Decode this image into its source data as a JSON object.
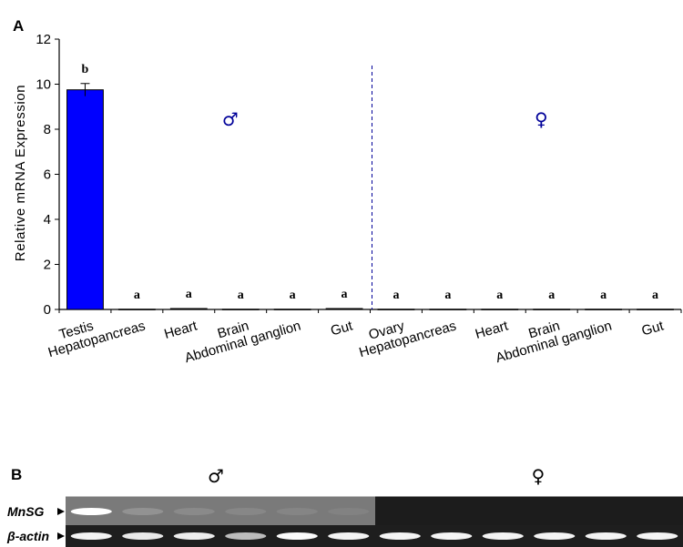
{
  "panel_a_label": "A",
  "panel_b_label": "B",
  "chart_data": {
    "type": "bar",
    "title": "",
    "xlabel": "",
    "ylabel": "Relative mRNA Expression",
    "ylim": [
      0,
      12
    ],
    "yticks": [
      0,
      2,
      4,
      6,
      8,
      10,
      12
    ],
    "grid": false,
    "categories": [
      "Testis",
      "Hepatopancreas",
      "Heart",
      "Brain",
      "Abdominal ganglion",
      "Gut",
      "Ovary",
      "Hepatopancreas",
      "Heart",
      "Brain",
      "Abdominal ganglion",
      "Gut"
    ],
    "values": [
      9.75,
      0.01,
      0.04,
      0.01,
      0.01,
      0.04,
      0.01,
      0.01,
      0.01,
      0.01,
      0.01,
      0.01
    ],
    "errors": [
      0.28,
      0,
      0,
      0,
      0,
      0,
      0,
      0,
      0,
      0,
      0,
      0
    ],
    "significance": [
      "b",
      "a",
      "a",
      "a",
      "a",
      "a",
      "a",
      "a",
      "a",
      "a",
      "a",
      "a"
    ],
    "bar_color": "#0000ff",
    "divider_color": "#000099",
    "groups": [
      {
        "symbol": "♂",
        "color": "#000099"
      },
      {
        "symbol": "♀",
        "color": "#000099"
      }
    ]
  },
  "gel": {
    "sex_labels": [
      "♂",
      "♀"
    ],
    "rows": [
      {
        "label": "MnSG",
        "intensities": [
          1.0,
          0.18,
          0.12,
          0.1,
          0.08,
          0.06,
          0.0,
          0.0,
          0.0,
          0.0,
          0.0,
          0.0
        ]
      },
      {
        "label": "β-actin",
        "intensities": [
          0.95,
          0.9,
          0.92,
          0.7,
          0.98,
          0.95,
          0.95,
          0.95,
          0.95,
          0.95,
          0.95,
          0.95
        ]
      }
    ]
  }
}
